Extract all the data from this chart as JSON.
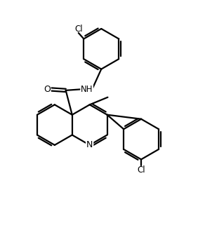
{
  "background_color": "#ffffff",
  "line_color": "#000000",
  "line_width": 1.6,
  "figsize": [
    2.92,
    3.38
  ],
  "dpi": 100,
  "xlim": [
    0,
    9.5
  ],
  "ylim": [
    0,
    11.0
  ]
}
